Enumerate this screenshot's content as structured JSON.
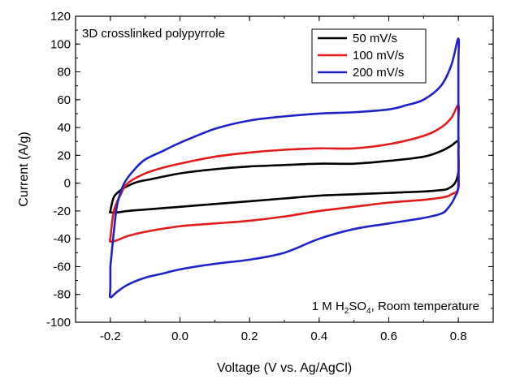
{
  "chart_data": {
    "type": "line",
    "xlabel": "Voltage (V vs. Ag/AgCl)",
    "ylabel": "Current (A/g)",
    "xlim": [
      -0.3,
      0.9
    ],
    "ylim": [
      -100,
      120
    ],
    "x_ticks": [
      "-0.2",
      "0.0",
      "0.2",
      "0.4",
      "0.6",
      "0.8"
    ],
    "x_tick_values": [
      -0.2,
      0.0,
      0.2,
      0.4,
      0.6,
      0.8
    ],
    "y_ticks": [
      "-100",
      "-80",
      "-60",
      "-40",
      "-20",
      "0",
      "20",
      "40",
      "60",
      "80",
      "100",
      "120"
    ],
    "y_tick_values": [
      -100,
      -80,
      -60,
      -40,
      -20,
      0,
      20,
      40,
      60,
      80,
      100,
      120
    ],
    "grid": false,
    "legend_position": "top-right",
    "annotation_top_left": "3D crosslinked polypyrrole",
    "annotation_bottom_right": {
      "prefix": "1 M H",
      "sub1": "2",
      "mid": "SO",
      "sub2": "4",
      "suffix": ", Room temperature"
    },
    "series": [
      {
        "name": "50 mV/s",
        "color": "#000000",
        "x": [
          -0.2,
          -0.19,
          -0.17,
          -0.15,
          -0.12,
          -0.08,
          0.0,
          0.1,
          0.2,
          0.3,
          0.4,
          0.5,
          0.6,
          0.7,
          0.75,
          0.78,
          0.79,
          0.8,
          0.8,
          0.8,
          0.79,
          0.77,
          0.75,
          0.7,
          0.6,
          0.5,
          0.4,
          0.3,
          0.2,
          0.1,
          0.0,
          -0.1,
          -0.15,
          -0.18,
          -0.2,
          -0.2
        ],
        "y": [
          -20,
          -10,
          -5,
          -2,
          1,
          3,
          7,
          10,
          12,
          13,
          14,
          14,
          16,
          19,
          23,
          27,
          29,
          30,
          22,
          8,
          0,
          -4,
          -5,
          -6,
          -7,
          -8,
          -9,
          -11,
          -13,
          -15,
          -17,
          -19,
          -20,
          -21,
          -21,
          -20
        ]
      },
      {
        "name": "100 mV/s",
        "color": "#e31a1c",
        "x": [
          -0.2,
          -0.19,
          -0.17,
          -0.15,
          -0.1,
          -0.05,
          0.0,
          0.1,
          0.2,
          0.3,
          0.4,
          0.5,
          0.6,
          0.7,
          0.75,
          0.78,
          0.8,
          0.8,
          0.8,
          0.8,
          0.78,
          0.76,
          0.7,
          0.6,
          0.5,
          0.4,
          0.3,
          0.2,
          0.1,
          0.0,
          -0.1,
          -0.15,
          -0.18,
          -0.2,
          -0.2
        ],
        "y": [
          -40,
          -20,
          -8,
          0,
          7,
          11,
          14,
          19,
          22,
          24,
          25,
          25,
          28,
          34,
          40,
          47,
          56,
          42,
          10,
          -4,
          -8,
          -10,
          -12,
          -14,
          -17,
          -20,
          -24,
          -27,
          -29,
          -31,
          -35,
          -38,
          -41,
          -42,
          -40
        ]
      },
      {
        "name": "200 mV/s",
        "color": "#1f22c8",
        "x": [
          -0.2,
          -0.19,
          -0.18,
          -0.16,
          -0.13,
          -0.1,
          -0.05,
          0.0,
          0.1,
          0.2,
          0.3,
          0.4,
          0.5,
          0.6,
          0.65,
          0.7,
          0.75,
          0.78,
          0.8,
          0.8,
          0.8,
          0.8,
          0.79,
          0.77,
          0.75,
          0.7,
          0.6,
          0.5,
          0.4,
          0.3,
          0.2,
          0.1,
          0.0,
          -0.05,
          -0.1,
          -0.15,
          -0.18,
          -0.2,
          -0.2,
          -0.2
        ],
        "y": [
          -60,
          -35,
          -15,
          0,
          10,
          17,
          23,
          29,
          39,
          45,
          48,
          50,
          51,
          53,
          56,
          60,
          70,
          85,
          104,
          84,
          40,
          0,
          -10,
          -18,
          -22,
          -25,
          -29,
          -33,
          -40,
          -50,
          -55,
          -58,
          -62,
          -65,
          -68,
          -73,
          -78,
          -82,
          -75,
          -60
        ]
      }
    ]
  }
}
